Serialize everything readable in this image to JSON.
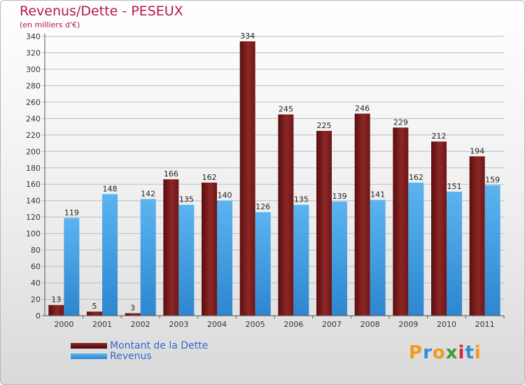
{
  "chart_data": {
    "type": "bar",
    "title": "Revenus/Dette - PESEUX",
    "subtitle": "(en milliers d'€)",
    "categories": [
      "2000",
      "2001",
      "2002",
      "2003",
      "2004",
      "2005",
      "2006",
      "2007",
      "2008",
      "2009",
      "2010",
      "2011"
    ],
    "series": [
      {
        "name": "Montant de la Dette",
        "color": "#7a1a1a",
        "values": [
          13,
          5,
          3,
          166,
          162,
          334,
          245,
          225,
          246,
          229,
          212,
          194
        ]
      },
      {
        "name": "Revenus",
        "color": "#3d9ee6",
        "values": [
          119,
          148,
          142,
          135,
          140,
          126,
          135,
          139,
          141,
          162,
          151,
          159
        ]
      }
    ],
    "ylim": [
      0,
      340
    ],
    "ytick_step": 20,
    "grid": true,
    "legend_position": "bottom-left"
  },
  "logo": {
    "text": "Proxiti"
  }
}
